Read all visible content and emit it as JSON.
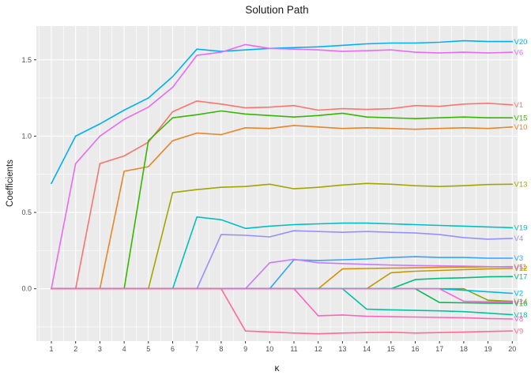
{
  "chart_data": {
    "type": "line",
    "title": "Solution Path",
    "xlabel": "κ",
    "ylabel": "Coefficients",
    "x": [
      1,
      2,
      3,
      4,
      5,
      6,
      7,
      8,
      9,
      10,
      11,
      12,
      13,
      14,
      15,
      16,
      17,
      18,
      19,
      20
    ],
    "xticks": [
      "1",
      "2",
      "3",
      "4",
      "5",
      "6",
      "7",
      "8",
      "9",
      "10",
      "11",
      "12",
      "13",
      "14",
      "15",
      "16",
      "17",
      "18",
      "19",
      "20"
    ],
    "yticks": [
      "0.0",
      "0.5",
      "1.0",
      "1.5"
    ],
    "ytick_values": [
      0.0,
      0.5,
      1.0,
      1.5
    ],
    "ylim": [
      -0.345,
      1.72
    ],
    "grid": true,
    "legend_position": "direct-labels-right",
    "panel_bg": "#EBEBEB",
    "grid_color": "#FFFFFF",
    "tick_color": "#333333",
    "tick_label_color": "#4D4D4D",
    "series": [
      {
        "name": "V1",
        "color": "#F8766D",
        "values": [
          0,
          0,
          0.82,
          0.87,
          0.96,
          1.16,
          1.23,
          1.21,
          1.185,
          1.19,
          1.2,
          1.17,
          1.18,
          1.175,
          1.18,
          1.2,
          1.195,
          1.21,
          1.215,
          1.205
        ]
      },
      {
        "name": "V10",
        "color": "#E88526",
        "values": [
          0,
          0,
          0,
          0.77,
          0.8,
          0.97,
          1.02,
          1.01,
          1.055,
          1.05,
          1.07,
          1.06,
          1.05,
          1.055,
          1.05,
          1.045,
          1.05,
          1.055,
          1.05,
          1.06
        ]
      },
      {
        "name": "V11",
        "color": "#D89000",
        "values": [
          0,
          0,
          0,
          0,
          0,
          0,
          0,
          0,
          0,
          0,
          0,
          0,
          0.13,
          0.133,
          0.135,
          0.137,
          0.14,
          0.142,
          0.144,
          0.145
        ]
      },
      {
        "name": "V12",
        "color": "#C09B00",
        "values": [
          0,
          0,
          0,
          0,
          0,
          0,
          0,
          0,
          0,
          0,
          0,
          0,
          0,
          0,
          0.105,
          0.115,
          0.12,
          0.125,
          0.13,
          0.133
        ]
      },
      {
        "name": "V13",
        "color": "#A3A500",
        "values": [
          0,
          0,
          0,
          0,
          0,
          0.63,
          0.65,
          0.665,
          0.67,
          0.685,
          0.655,
          0.665,
          0.68,
          0.69,
          0.685,
          0.675,
          0.67,
          0.675,
          0.683,
          0.685
        ]
      },
      {
        "name": "V14",
        "color": "#7CAE00",
        "values": [
          0,
          0,
          0,
          0,
          0,
          0,
          0,
          0,
          0,
          0,
          0,
          0,
          0,
          0,
          0,
          0,
          0,
          0,
          -0.075,
          -0.082
        ]
      },
      {
        "name": "V15",
        "color": "#39B600",
        "values": [
          0,
          0,
          0,
          0,
          0.97,
          1.12,
          1.14,
          1.165,
          1.145,
          1.135,
          1.125,
          1.135,
          1.15,
          1.125,
          1.12,
          1.115,
          1.12,
          1.125,
          1.12,
          1.12
        ]
      },
      {
        "name": "V16",
        "color": "#00BB4E",
        "values": [
          0,
          0,
          0,
          0,
          0,
          0,
          0,
          0,
          0,
          0,
          0,
          0,
          0,
          0,
          0,
          0,
          -0.09,
          -0.092,
          -0.094,
          -0.095
        ]
      },
      {
        "name": "V17",
        "color": "#00BF7D",
        "values": [
          0,
          0,
          0,
          0,
          0,
          0,
          0,
          0,
          0,
          0,
          0,
          0,
          0,
          0,
          0,
          0.06,
          0.068,
          0.072,
          0.078,
          0.08
        ]
      },
      {
        "name": "V18",
        "color": "#00C1A3",
        "values": [
          0,
          0,
          0,
          0,
          0,
          0,
          0,
          0,
          0,
          0,
          0,
          0,
          0,
          -0.134,
          -0.138,
          -0.142,
          -0.145,
          -0.15,
          -0.16,
          -0.17
        ]
      },
      {
        "name": "V19",
        "color": "#00BFC4",
        "values": [
          0,
          0,
          0,
          0,
          0,
          0,
          0.47,
          0.452,
          0.395,
          0.41,
          0.42,
          0.425,
          0.43,
          0.43,
          0.425,
          0.42,
          0.415,
          0.41,
          0.405,
          0.4
        ]
      },
      {
        "name": "V2",
        "color": "#00BAE0",
        "values": [
          0,
          0,
          0,
          0,
          0,
          0,
          0,
          0,
          0,
          0,
          0,
          0,
          0,
          0,
          0,
          0,
          0,
          -0.01,
          -0.02,
          -0.03
        ]
      },
      {
        "name": "V20",
        "color": "#00B0F6",
        "values": [
          0.69,
          1.0,
          1.08,
          1.17,
          1.25,
          1.39,
          1.57,
          1.555,
          1.565,
          1.575,
          1.58,
          1.585,
          1.595,
          1.605,
          1.61,
          1.61,
          1.615,
          1.625,
          1.62,
          1.62
        ]
      },
      {
        "name": "V3",
        "color": "#35A2FF",
        "values": [
          0,
          0,
          0,
          0,
          0,
          0,
          0,
          0,
          0,
          0,
          0.19,
          0.185,
          0.19,
          0.195,
          0.205,
          0.21,
          0.205,
          0.205,
          0.2,
          0.2
        ]
      },
      {
        "name": "V4",
        "color": "#9590FF",
        "values": [
          0,
          0,
          0,
          0,
          0,
          0,
          0,
          0.355,
          0.35,
          0.34,
          0.38,
          0.375,
          0.37,
          0.375,
          0.37,
          0.365,
          0.355,
          0.335,
          0.325,
          0.33
        ]
      },
      {
        "name": "V5",
        "color": "#C77CFF",
        "values": [
          0,
          0,
          0,
          0,
          0,
          0,
          0,
          0,
          0,
          0.17,
          0.193,
          0.17,
          0.165,
          0.16,
          0.155,
          0.152,
          0.15,
          0.148,
          0.145,
          0.143
        ]
      },
      {
        "name": "V6",
        "color": "#E76BF3",
        "values": [
          0,
          0.82,
          1.0,
          1.11,
          1.19,
          1.32,
          1.53,
          1.55,
          1.6,
          1.575,
          1.57,
          1.565,
          1.555,
          1.56,
          1.565,
          1.55,
          1.545,
          1.55,
          1.545,
          1.55
        ]
      },
      {
        "name": "V7",
        "color": "#FA62DB",
        "values": [
          0,
          0,
          0,
          0,
          0,
          0,
          0,
          0,
          0,
          0,
          0,
          0,
          0,
          0,
          0,
          0,
          0,
          -0.082,
          -0.085,
          -0.088
        ]
      },
      {
        "name": "V8",
        "color": "#FF62BC",
        "values": [
          0,
          0,
          0,
          0,
          0,
          0,
          0,
          0,
          0,
          0,
          0,
          -0.177,
          -0.172,
          -0.18,
          -0.183,
          -0.185,
          -0.188,
          -0.19,
          -0.195,
          -0.198
        ]
      },
      {
        "name": "V9",
        "color": "#FF6A98",
        "values": [
          0,
          0,
          0,
          0,
          0,
          0,
          0,
          0,
          -0.277,
          -0.283,
          -0.29,
          -0.295,
          -0.29,
          -0.287,
          -0.285,
          -0.29,
          -0.287,
          -0.284,
          -0.28,
          -0.277
        ]
      }
    ]
  }
}
